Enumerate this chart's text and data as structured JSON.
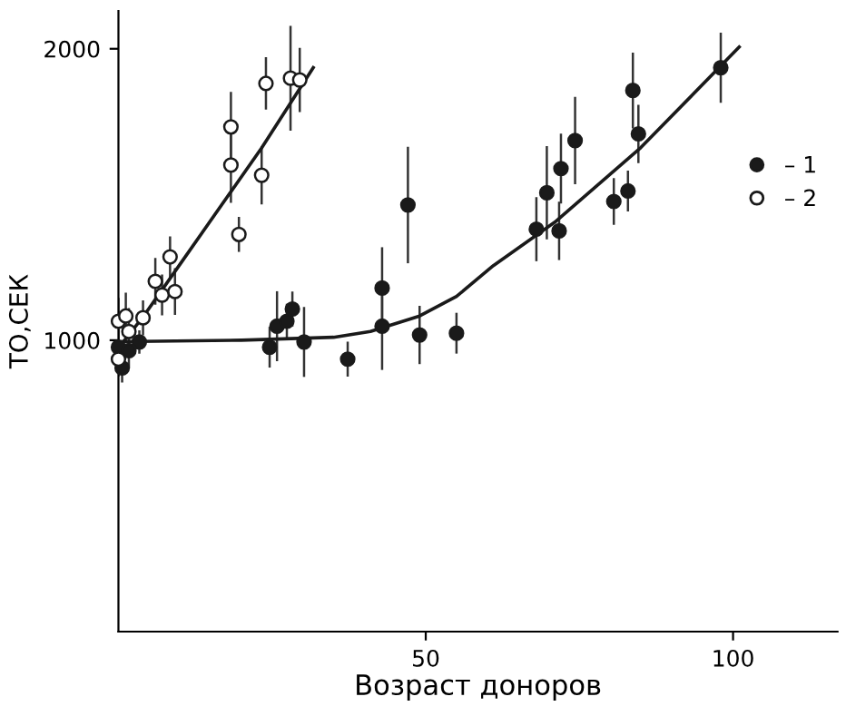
{
  "chart_data": {
    "type": "scatter",
    "xlabel": "Возраст доноров",
    "ylabel": "ТО,СЕК",
    "xlim": [
      0,
      117
    ],
    "ylim": [
      0,
      2130
    ],
    "xticks": [
      50,
      100
    ],
    "yticks": [
      1000,
      2000
    ],
    "grid": false,
    "legend": "upper right",
    "series": [
      {
        "name": "– 1",
        "marker": "circle",
        "color": "#1a1a1a",
        "x": [
          0,
          0.6,
          1.7,
          3.4,
          24.6,
          25.8,
          27.4,
          28.3,
          30.2,
          37.3,
          42.9,
          42.9,
          47.1,
          49,
          55,
          68,
          69.7,
          71.7,
          72,
          74.3,
          80.6,
          82.9,
          83.7,
          84.6,
          98
        ],
        "values": [
          976,
          905,
          964,
          994,
          976,
          1048,
          1065,
          1107,
          994,
          935,
          1179,
          1048,
          1464,
          1018,
          1024,
          1381,
          1506,
          1375,
          1589,
          1685,
          1476,
          1512,
          1857,
          1708,
          1935
        ],
        "errors": [
          60,
          50,
          60,
          40,
          70,
          120,
          60,
          60,
          120,
          60,
          140,
          150,
          200,
          100,
          70,
          110,
          160,
          100,
          120,
          150,
          80,
          70,
          130,
          100,
          120
        ]
      },
      {
        "name": "– 2",
        "marker": "circle",
        "color": "#ffffff",
        "x": [
          0,
          0,
          1.2,
          1.7,
          4,
          6,
          7.1,
          8.4,
          9.2,
          18.3,
          18.3,
          19.6,
          23.3,
          24,
          28,
          29.5
        ],
        "values": [
          935,
          1065,
          1083,
          1030,
          1077,
          1202,
          1155,
          1286,
          1167,
          1732,
          1601,
          1363,
          1566,
          1881,
          1899,
          1893
        ],
        "errors": [
          60,
          80,
          80,
          80,
          60,
          80,
          70,
          70,
          80,
          120,
          130,
          60,
          100,
          90,
          180,
          110
        ]
      },
      {
        "type": "line",
        "color": "#1a1a1a",
        "x": [
          0,
          20,
          35,
          41,
          49,
          55,
          61,
          71,
          85,
          101
        ],
        "values": [
          995,
          1000,
          1010,
          1030,
          1083,
          1150,
          1256,
          1405,
          1661,
          2006
        ]
      },
      {
        "type": "line",
        "color": "#1a1a1a",
        "x": [
          1,
          4,
          10,
          23.3,
          31.7
        ],
        "values": [
          1000,
          1080,
          1260,
          1660,
          1935
        ]
      }
    ]
  }
}
